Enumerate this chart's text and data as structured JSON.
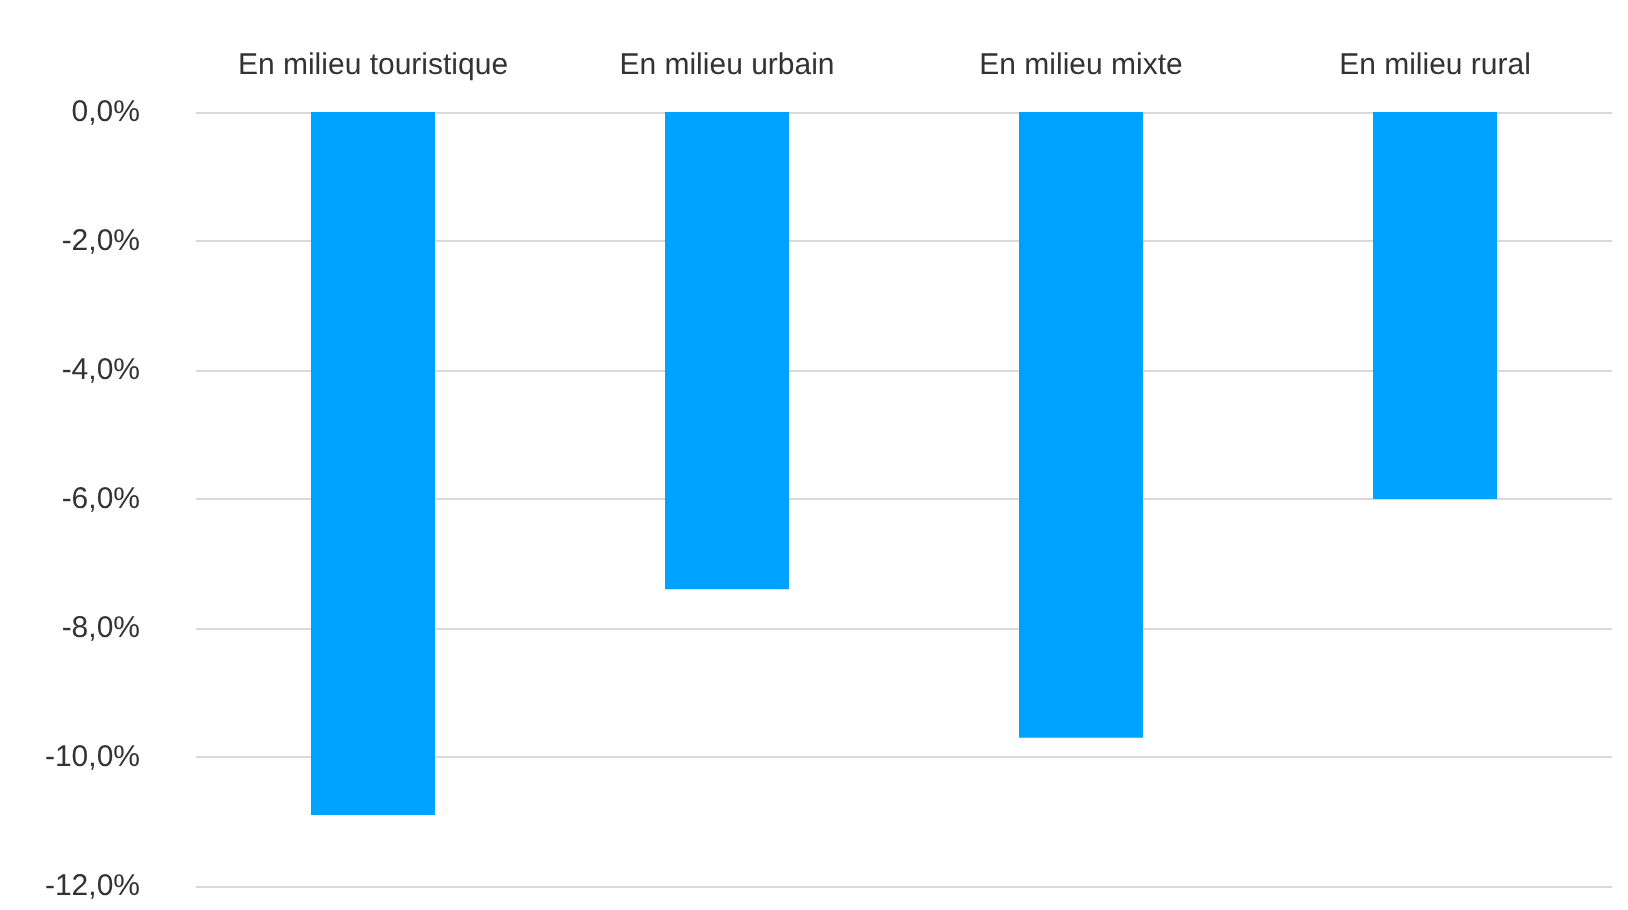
{
  "chart_data": {
    "type": "bar",
    "categories": [
      "En milieu touristique",
      "En milieu urbain",
      "En milieu mixte",
      "En milieu rural"
    ],
    "values": [
      -10.9,
      -7.4,
      -9.7,
      -6.0
    ],
    "color": "#00a2ff",
    "ylim": [
      -12,
      0
    ],
    "yticks": [
      {
        "value": -12,
        "label": "-12,0%"
      },
      {
        "value": -10,
        "label": "-10,0%"
      },
      {
        "value": -8,
        "label": "-8,0%"
      },
      {
        "value": -6,
        "label": "-6,0%"
      },
      {
        "value": -4,
        "label": "-4,0%"
      },
      {
        "value": -2,
        "label": "-2,0%"
      },
      {
        "value": 0,
        "label": "0,0%"
      }
    ],
    "grid": "y"
  }
}
